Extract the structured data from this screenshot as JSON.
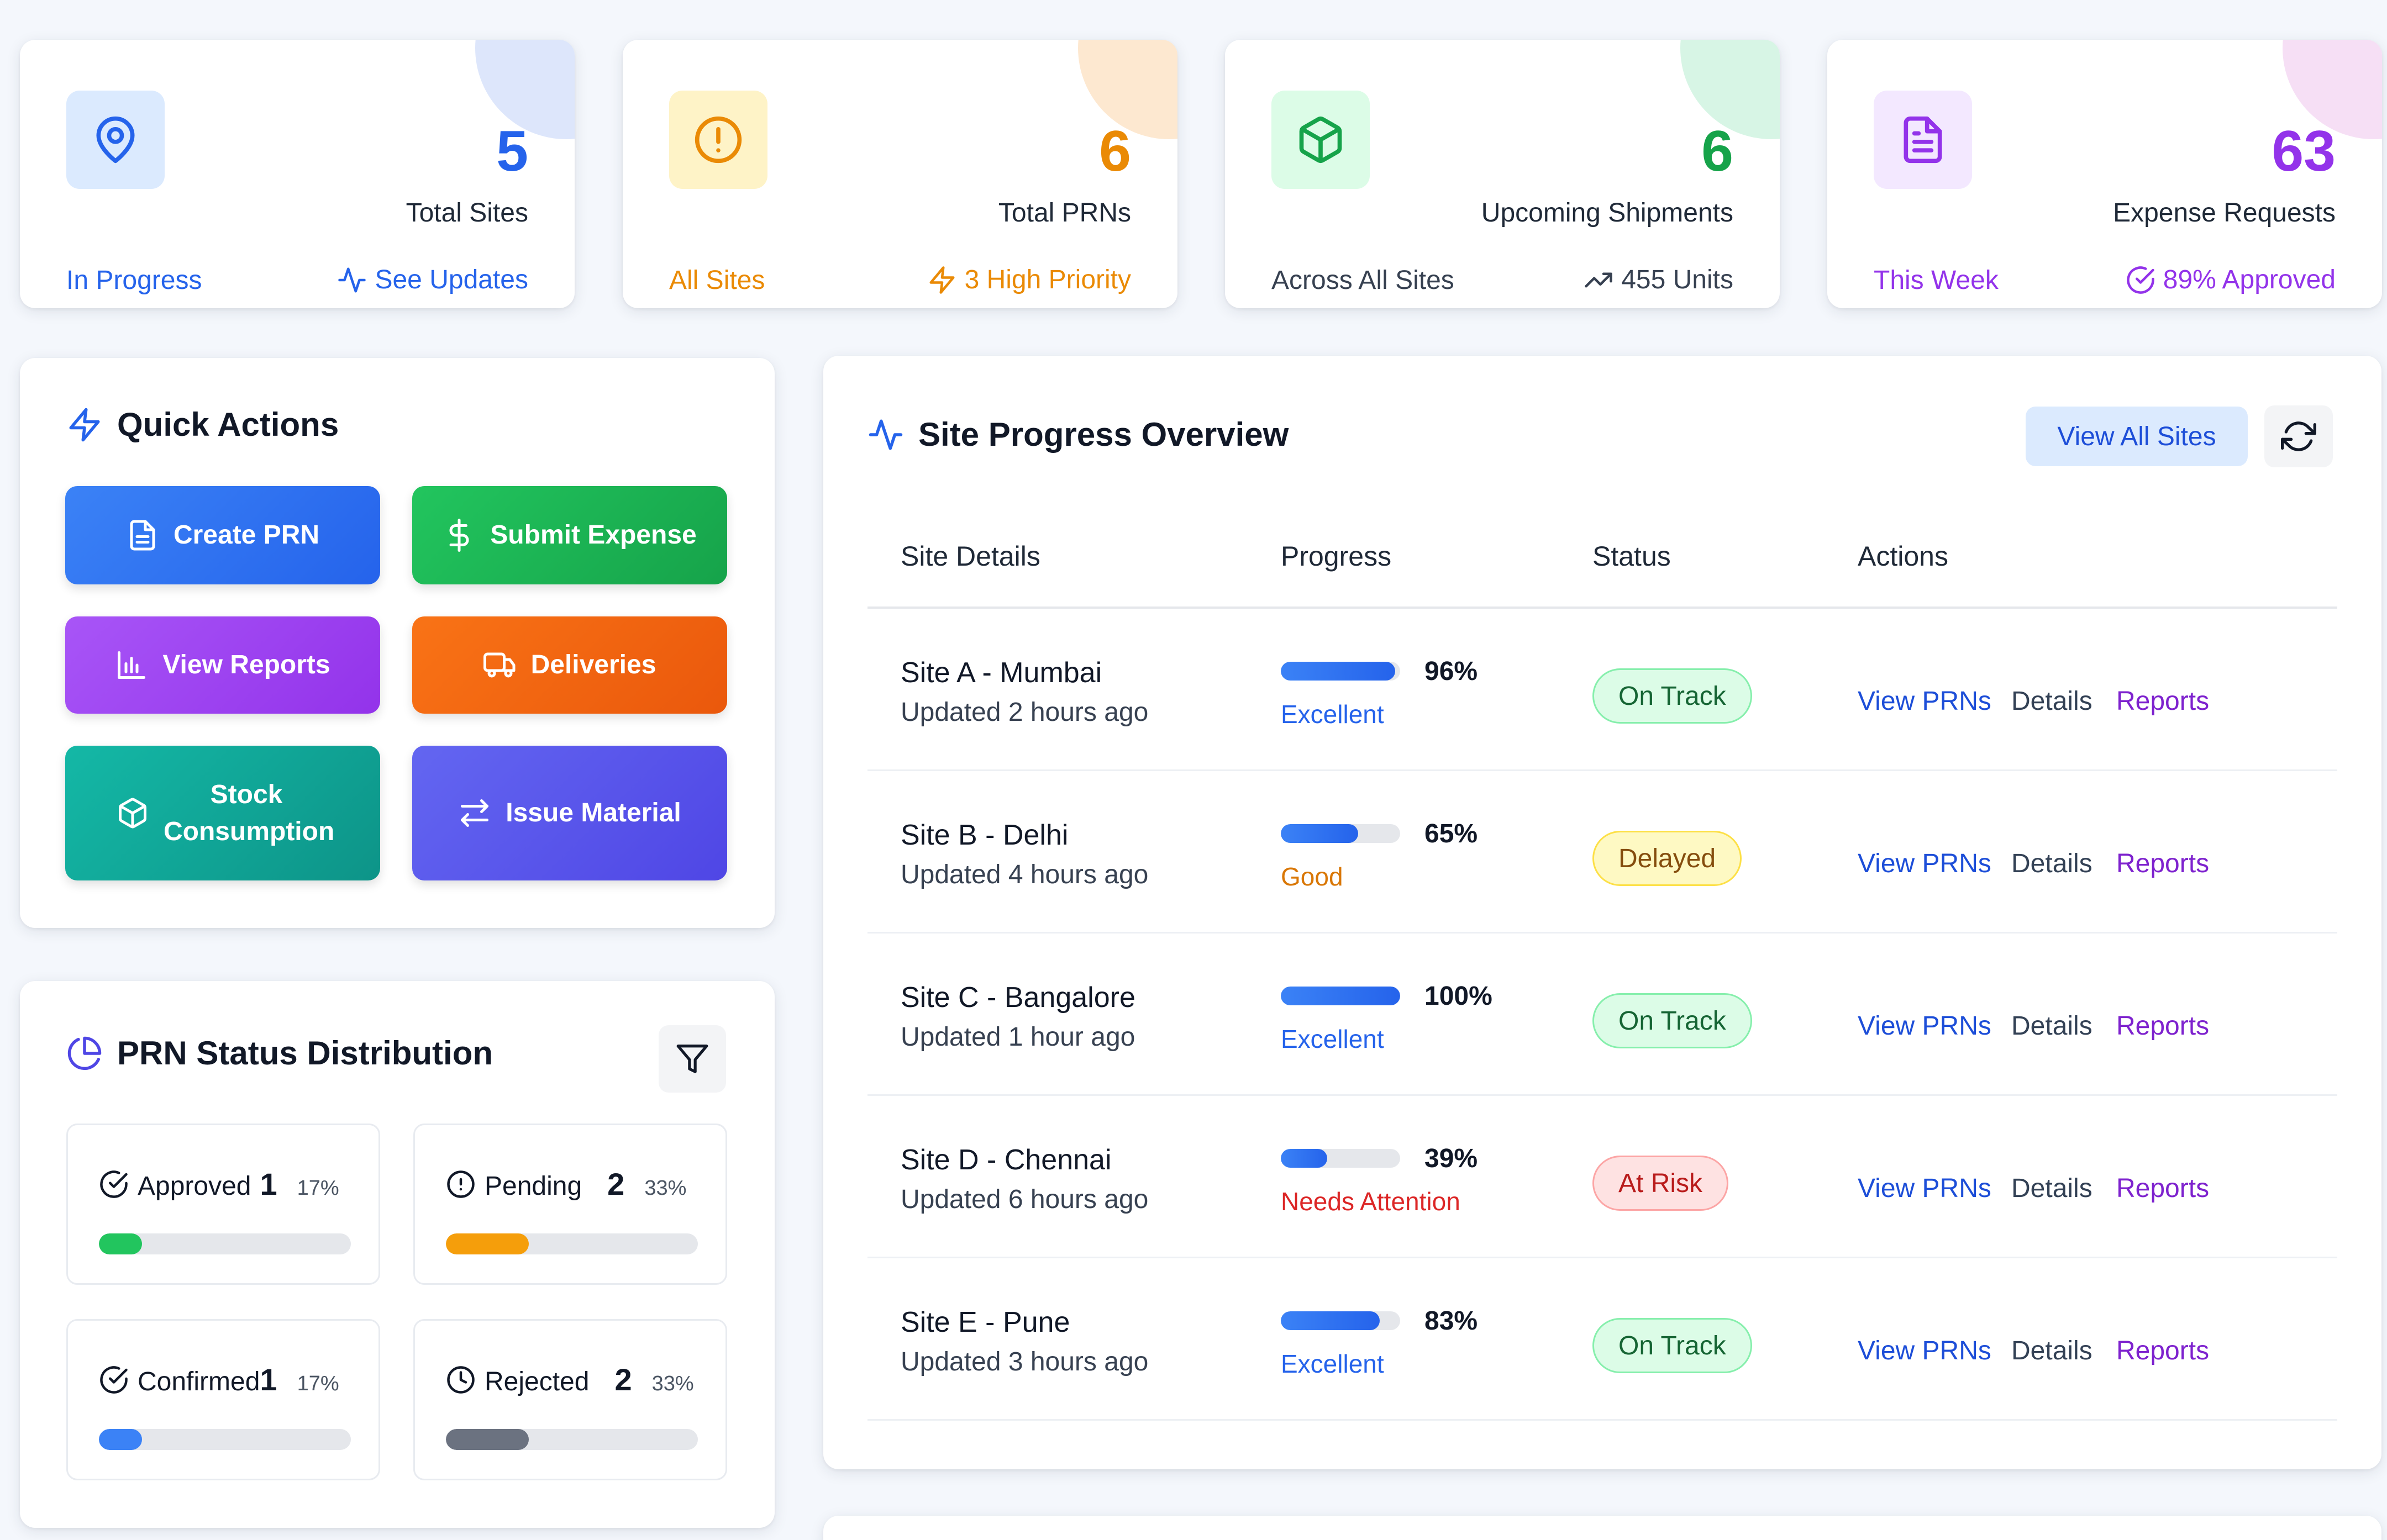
{
  "stats": [
    {
      "number": "5",
      "title": "Total Sites",
      "sub": "In Progress",
      "foot": "See Updates",
      "color": "#2563eb",
      "icon_bg": "#dbeafe",
      "blob": "#dde6fb",
      "icon": "map-pin-icon",
      "foot_icon": "activity-icon"
    },
    {
      "number": "6",
      "title": "Total PRNs",
      "sub": "All Sites",
      "foot": "3 High Priority",
      "color": "#ea8a05",
      "icon_bg": "#fef3c7",
      "blob": "#fde8d0",
      "icon": "alert-circle-icon",
      "foot_icon": "zap-icon"
    },
    {
      "number": "6",
      "title": "Upcoming Shipments",
      "sub": "Across All Sites",
      "foot": "455 Units",
      "color": "#16a34a",
      "icon_bg": "#dcfce7",
      "blob": "#d7f5e5",
      "icon": "package-icon",
      "foot_icon": "trending-up-icon"
    },
    {
      "number": "63",
      "title": "Expense Requests",
      "sub": "This Week",
      "foot": "89% Approved",
      "color": "#9333ea",
      "icon_bg": "#f3e8ff",
      "blob": "#f6dff5",
      "icon": "file-text-icon",
      "foot_icon": "check-circle-icon"
    }
  ],
  "quick_actions": {
    "title": "Quick Actions",
    "buttons": [
      {
        "label": "Create PRN",
        "icon": "file-icon"
      },
      {
        "label": "Submit Expense",
        "icon": "dollar-icon"
      },
      {
        "label": "View Reports",
        "icon": "bar-chart-icon"
      },
      {
        "label": "Deliveries",
        "icon": "truck-icon"
      },
      {
        "label": "Stock Consumption",
        "icon": "box-icon"
      },
      {
        "label": "Issue Material",
        "icon": "arrows-icon"
      }
    ]
  },
  "prn_status": {
    "title": "PRN Status Distribution",
    "items": [
      {
        "label": "Approved",
        "count": "1",
        "percent": "17%",
        "fill": 0.17,
        "color": "#22c55e"
      },
      {
        "label": "Pending",
        "count": "2",
        "percent": "33%",
        "fill": 0.33,
        "color": "#f59e0b"
      },
      {
        "label": "Confirmed",
        "count": "1",
        "percent": "17%",
        "fill": 0.17,
        "color": "#3b82f6"
      },
      {
        "label": "Rejected",
        "count": "2",
        "percent": "33%",
        "fill": 0.33,
        "color": "#6b7280"
      }
    ]
  },
  "site_progress": {
    "title": "Site Progress Overview",
    "view_all": "View All Sites",
    "columns": [
      "Site Details",
      "Progress",
      "Status",
      "Actions"
    ],
    "action_labels": {
      "prns": "View PRNs",
      "details": "Details",
      "reports": "Reports"
    },
    "rows": [
      {
        "name": "Site A - Mumbai",
        "updated": "Updated 2 hours ago",
        "progress": 96,
        "percent": "96%",
        "rating": "Excellent",
        "rating_color": "#2563eb",
        "status": "On Track",
        "status_kind": "ok"
      },
      {
        "name": "Site B - Delhi",
        "updated": "Updated 4 hours ago",
        "progress": 65,
        "percent": "65%",
        "rating": "Good",
        "rating_color": "#d97706",
        "status": "Delayed",
        "status_kind": "warn"
      },
      {
        "name": "Site C - Bangalore",
        "updated": "Updated 1 hour ago",
        "progress": 100,
        "percent": "100%",
        "rating": "Excellent",
        "rating_color": "#2563eb",
        "status": "On Track",
        "status_kind": "ok"
      },
      {
        "name": "Site D - Chennai",
        "updated": "Updated 6 hours ago",
        "progress": 39,
        "percent": "39%",
        "rating": "Needs Attention",
        "rating_color": "#dc2626",
        "status": "At Risk",
        "status_kind": "risk"
      },
      {
        "name": "Site E - Pune",
        "updated": "Updated 3 hours ago",
        "progress": 83,
        "percent": "83%",
        "rating": "Excellent",
        "rating_color": "#2563eb",
        "status": "On Track",
        "status_kind": "ok"
      }
    ]
  }
}
